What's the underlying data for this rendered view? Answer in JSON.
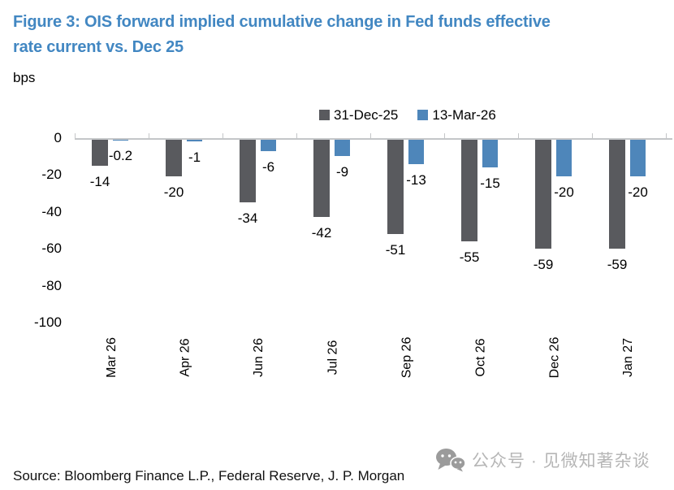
{
  "figure": {
    "title_line1": "Figure 3: OIS forward implied cumulative change in Fed funds effective",
    "title_line2": "rate current vs. Dec 25",
    "units_label": "bps",
    "source": "Source: Bloomberg Finance L.P., Federal Reserve, J. P. Morgan"
  },
  "watermark": {
    "icon": "wechat-icon",
    "text": "公众号 · 见微知著杂谈"
  },
  "colors": {
    "title": "#4287c2",
    "series_dec25": "#595a5e",
    "series_mar26": "#4e86ba",
    "axis": "#c4c6c8",
    "watermark_icon": "#9b9b9b",
    "watermark_text": "#b6b6b6"
  },
  "chart_data": {
    "type": "bar",
    "title": "OIS forward implied cumulative change in Fed funds effective rate current vs. Dec 25",
    "ylabel": "bps",
    "xlabel": "",
    "grid": false,
    "legend_position": "top-center",
    "categories": [
      "Mar 26",
      "Apr 26",
      "Jun 26",
      "Jul 26",
      "Sep 26",
      "Oct 26",
      "Dec 26",
      "Jan 27"
    ],
    "series": [
      {
        "name": "31-Dec-25",
        "color_key": "series_dec25",
        "values": [
          -14,
          -20,
          -34,
          -42,
          -51,
          -55,
          -59,
          -59
        ],
        "labels": [
          "-14",
          "-20",
          "-34",
          "-42",
          "-51",
          "-55",
          "-59",
          "-59"
        ]
      },
      {
        "name": "13-Mar-26",
        "color_key": "series_mar26",
        "values": [
          -0.2,
          -1,
          -6,
          -9,
          -13,
          -15,
          -20,
          -20
        ],
        "labels": [
          "-0.2",
          "-1",
          "-6",
          "-9",
          "-13",
          "-15",
          "-20",
          "-20"
        ]
      }
    ],
    "y_axis": {
      "min": -100,
      "max": 0,
      "tick_values": [
        0,
        -20,
        -40,
        -60,
        -80,
        -100
      ],
      "tick_labels": [
        "0",
        "-20",
        "-40",
        "-60",
        "-80",
        "-100"
      ]
    }
  }
}
